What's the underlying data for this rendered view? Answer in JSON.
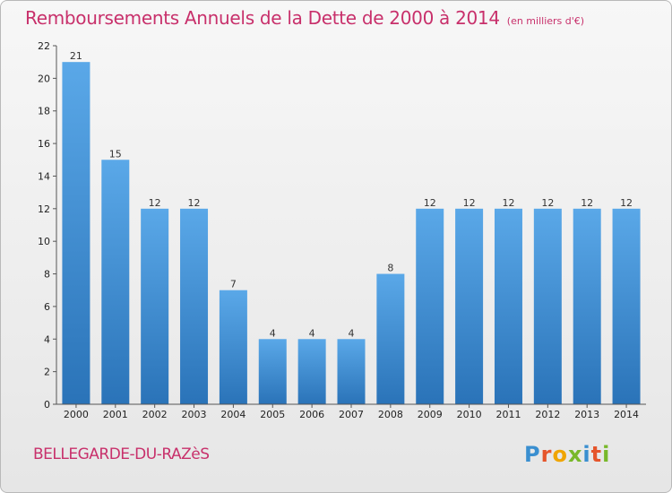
{
  "title": "Remboursements Annuels de la Dette de 2000 à 2014",
  "unit": "(en milliers d'€)",
  "town": "BELLEGARDE-DU-RAZèS",
  "logo": {
    "letters": [
      "P",
      "r",
      "o",
      "x",
      "i",
      "t",
      "i"
    ],
    "colors": [
      "#3a8fd0",
      "#e5552b",
      "#f0a500",
      "#78b82a",
      "#3a8fd0",
      "#e5552b",
      "#78b82a"
    ]
  },
  "colors": {
    "bar": "#3d8fd6",
    "bar_dark": "#2a6fad",
    "title": "#c8306b"
  },
  "chart_data": {
    "type": "bar",
    "categories": [
      "2000",
      "2001",
      "2002",
      "2003",
      "2004",
      "2005",
      "2006",
      "2007",
      "2008",
      "2009",
      "2010",
      "2011",
      "2012",
      "2013",
      "2014"
    ],
    "values": [
      21,
      15,
      12,
      12,
      7,
      4,
      4,
      4,
      8,
      12,
      12,
      12,
      12,
      12,
      12
    ],
    "ylim": [
      0,
      22
    ],
    "yticks": [
      0,
      2,
      4,
      6,
      8,
      10,
      12,
      14,
      16,
      18,
      20,
      22
    ],
    "grid": false
  }
}
